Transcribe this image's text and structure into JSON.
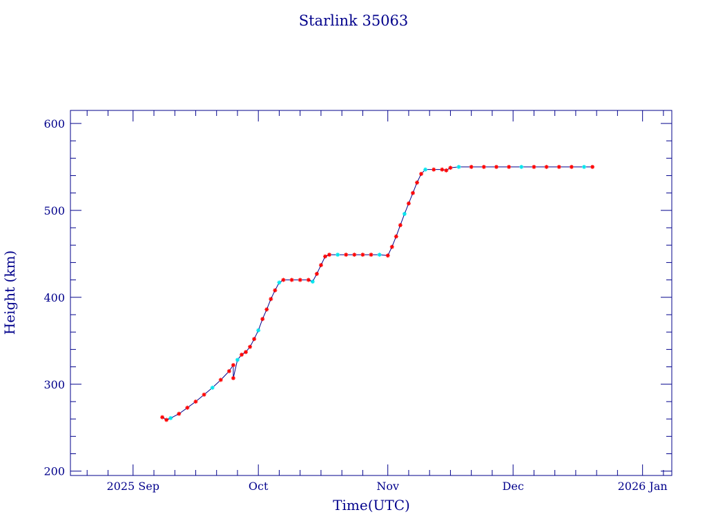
{
  "chart_data": {
    "type": "scatter",
    "title": "Starlink 35063",
    "xlabel": "Time(UTC)",
    "ylabel": "Height (km)",
    "xlim": [
      "2025-08-17",
      "2026-01-08"
    ],
    "ylim": [
      195,
      615
    ],
    "grid": false,
    "legend": "none",
    "x_tick_labels": [
      {
        "date": "2025-09-01",
        "label": "2025 Sep"
      },
      {
        "date": "2025-10-01",
        "label": "Oct"
      },
      {
        "date": "2025-11-01",
        "label": "Nov"
      },
      {
        "date": "2025-12-01",
        "label": "Dec"
      },
      {
        "date": "2026-01-01",
        "label": "2026 Jan"
      }
    ],
    "y_ticks": [
      200,
      300,
      400,
      500,
      600
    ],
    "colors": {
      "axes": "#00008b",
      "line": "#00008b",
      "marker": "#ff0000",
      "accent_marker": "#00e5ee"
    },
    "series": [
      {
        "points": [
          [
            "2025-09-08",
            262
          ],
          [
            "2025-09-09",
            259
          ],
          [
            "2025-09-10",
            261
          ],
          [
            "2025-09-12",
            266
          ],
          [
            "2025-09-14",
            273
          ],
          [
            "2025-09-16",
            280
          ],
          [
            "2025-09-18",
            288
          ],
          [
            "2025-09-20",
            296
          ],
          [
            "2025-09-22",
            305
          ],
          [
            "2025-09-24",
            315
          ],
          [
            "2025-09-25",
            322
          ],
          [
            "2025-09-25",
            307
          ],
          [
            "2025-09-26",
            328
          ],
          [
            "2025-09-27",
            334
          ],
          [
            "2025-09-28",
            337
          ],
          [
            "2025-09-29",
            343
          ],
          [
            "2025-09-30",
            352
          ],
          [
            "2025-10-01",
            362
          ],
          [
            "2025-10-02",
            375
          ],
          [
            "2025-10-03",
            386
          ],
          [
            "2025-10-04",
            398
          ],
          [
            "2025-10-05",
            408
          ],
          [
            "2025-10-06",
            417
          ],
          [
            "2025-10-07",
            420
          ],
          [
            "2025-10-09",
            420
          ],
          [
            "2025-10-11",
            420
          ],
          [
            "2025-10-13",
            420
          ],
          [
            "2025-10-14",
            418
          ],
          [
            "2025-10-15",
            427
          ],
          [
            "2025-10-16",
            437
          ],
          [
            "2025-10-17",
            447
          ],
          [
            "2025-10-18",
            449
          ],
          [
            "2025-10-20",
            449
          ],
          [
            "2025-10-22",
            449
          ],
          [
            "2025-10-24",
            449
          ],
          [
            "2025-10-26",
            449
          ],
          [
            "2025-10-28",
            449
          ],
          [
            "2025-10-30",
            449
          ],
          [
            "2025-11-01",
            448
          ],
          [
            "2025-11-02",
            458
          ],
          [
            "2025-11-03",
            470
          ],
          [
            "2025-11-04",
            483
          ],
          [
            "2025-11-05",
            496
          ],
          [
            "2025-11-06",
            508
          ],
          [
            "2025-11-07",
            520
          ],
          [
            "2025-11-08",
            532
          ],
          [
            "2025-11-09",
            542
          ],
          [
            "2025-11-10",
            547
          ],
          [
            "2025-11-12",
            547
          ],
          [
            "2025-11-14",
            547
          ],
          [
            "2025-11-15",
            546
          ],
          [
            "2025-11-16",
            549
          ],
          [
            "2025-11-18",
            550
          ],
          [
            "2025-11-21",
            550
          ],
          [
            "2025-11-24",
            550
          ],
          [
            "2025-11-27",
            550
          ],
          [
            "2025-11-30",
            550
          ],
          [
            "2025-12-03",
            550
          ],
          [
            "2025-12-06",
            550
          ],
          [
            "2025-12-09",
            550
          ],
          [
            "2025-12-12",
            550
          ],
          [
            "2025-12-15",
            550
          ],
          [
            "2025-12-18",
            550
          ],
          [
            "2025-12-20",
            550
          ]
        ]
      }
    ]
  }
}
